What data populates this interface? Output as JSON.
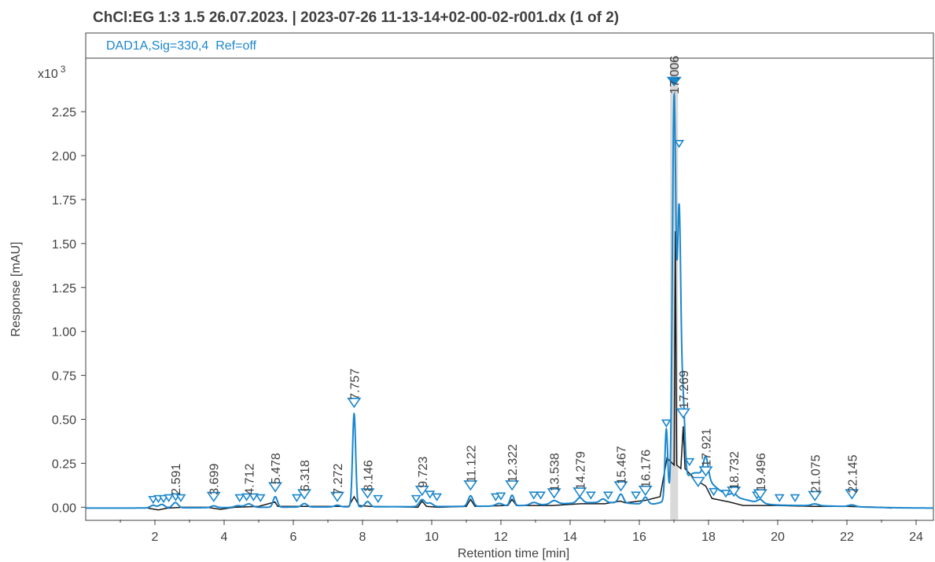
{
  "chart_data": {
    "type": "line",
    "title": "ChCl:EG 1:3 1.5 26.07.2023. | 2023-07-26 11-13-14+02-00-02-r001.dx (1 of 2)",
    "signal_label": "DAD1A,Sig=330,4  Ref=off",
    "xlabel": "Retention time [min]",
    "ylabel": "Response [mAU]",
    "y_multiplier": "x10",
    "y_multiplier_exp": "3",
    "xlim": [
      0,
      24.5
    ],
    "ylim": [
      -0.07,
      2.55
    ],
    "x_ticks": [
      {
        "v": 2,
        "label": "2"
      },
      {
        "v": 4,
        "label": "4"
      },
      {
        "v": 6,
        "label": "6"
      },
      {
        "v": 8,
        "label": "8"
      },
      {
        "v": 10,
        "label": "10"
      },
      {
        "v": 12,
        "label": "12"
      },
      {
        "v": 14,
        "label": "14"
      },
      {
        "v": 16,
        "label": "16"
      },
      {
        "v": 18,
        "label": "18"
      },
      {
        "v": 20,
        "label": "20"
      },
      {
        "v": 22,
        "label": "22"
      },
      {
        "v": 24,
        "label": "24"
      }
    ],
    "y_ticks": [
      {
        "v": 0,
        "label": "0.00"
      },
      {
        "v": 0.25,
        "label": "0.25"
      },
      {
        "v": 0.5,
        "label": "0.50"
      },
      {
        "v": 0.75,
        "label": "0.75"
      },
      {
        "v": 1.0,
        "label": "1.00"
      },
      {
        "v": 1.25,
        "label": "1.25"
      },
      {
        "v": 1.5,
        "label": "1.50"
      },
      {
        "v": 1.75,
        "label": "1.75"
      },
      {
        "v": 2.0,
        "label": "2.00"
      },
      {
        "v": 2.25,
        "label": "2.25"
      }
    ],
    "highlight_x": 17.006,
    "colors": {
      "signal": "#1a86cc",
      "baseline": "#1a1a1a",
      "highlight": "#d9d9d9",
      "text": "#404040"
    },
    "signal": {
      "name": "DAD1A,Sig=330,4  Ref=off",
      "baseline_level": -0.005,
      "peaks": [
        {
          "x": 1.95,
          "h": 0.015,
          "w": 0.08
        },
        {
          "x": 2.2,
          "h": 0.02,
          "w": 0.08
        },
        {
          "x": 2.591,
          "h": 0.03,
          "w": 0.08
        },
        {
          "x": 3.699,
          "h": 0.01,
          "w": 0.08
        },
        {
          "x": 4.4,
          "h": 0.01,
          "w": 0.1
        },
        {
          "x": 4.712,
          "h": 0.02,
          "w": 0.1
        },
        {
          "x": 5.478,
          "h": 0.06,
          "w": 0.06
        },
        {
          "x": 6.318,
          "h": 0.02,
          "w": 0.08
        },
        {
          "x": 7.272,
          "h": 0.01,
          "w": 0.08
        },
        {
          "x": 7.757,
          "h": 0.53,
          "w": 0.045
        },
        {
          "x": 8.146,
          "h": 0.03,
          "w": 0.07
        },
        {
          "x": 9.723,
          "h": 0.04,
          "w": 0.08
        },
        {
          "x": 9.95,
          "h": 0.02,
          "w": 0.08
        },
        {
          "x": 11.122,
          "h": 0.06,
          "w": 0.07
        },
        {
          "x": 11.95,
          "h": 0.015,
          "w": 0.1
        },
        {
          "x": 12.322,
          "h": 0.06,
          "w": 0.06
        },
        {
          "x": 12.95,
          "h": 0.015,
          "w": 0.1
        },
        {
          "x": 13.538,
          "h": 0.02,
          "w": 0.1
        },
        {
          "x": 14.279,
          "h": 0.03,
          "w": 0.08
        },
        {
          "x": 14.95,
          "h": 0.02,
          "w": 0.08
        },
        {
          "x": 15.467,
          "h": 0.05,
          "w": 0.07
        },
        {
          "x": 16.176,
          "h": 0.04,
          "w": 0.07
        },
        {
          "x": 16.78,
          "h": 0.4,
          "w": 0.04
        },
        {
          "x": 17.006,
          "h": 2.24,
          "w": 0.05
        },
        {
          "x": 17.15,
          "h": 1.55,
          "w": 0.05
        },
        {
          "x": 17.269,
          "h": 0.42,
          "w": 0.05
        },
        {
          "x": 17.921,
          "h": 0.12,
          "w": 0.07
        },
        {
          "x": 18.732,
          "h": 0.02,
          "w": 0.08
        },
        {
          "x": 19.496,
          "h": 0.02,
          "w": 0.08
        },
        {
          "x": 21.075,
          "h": 0.01,
          "w": 0.1
        },
        {
          "x": 22.145,
          "h": 0.01,
          "w": 0.1
        }
      ],
      "humps": [
        {
          "x": 6.5,
          "h": 0.005,
          "w": 2.5
        },
        {
          "x": 12.5,
          "h": 0.01,
          "w": 3.0
        },
        {
          "x": 15.0,
          "h": 0.025,
          "w": 1.3
        },
        {
          "x": 17.6,
          "h": 0.18,
          "w": 0.45
        },
        {
          "x": 18.6,
          "h": 0.05,
          "w": 0.6
        },
        {
          "x": 20.5,
          "h": 0.015,
          "w": 1.5
        }
      ]
    },
    "baseline_trace": [
      [
        1.8,
        -0.005
      ],
      [
        2.1,
        -0.015
      ],
      [
        2.35,
        -0.005
      ],
      [
        2.8,
        0.0
      ],
      [
        3.5,
        0.0
      ],
      [
        3.9,
        -0.012
      ],
      [
        4.3,
        0.0
      ],
      [
        5.0,
        0.005
      ],
      [
        5.47,
        0.03
      ],
      [
        5.55,
        0.005
      ],
      [
        6.5,
        0.005
      ],
      [
        7.6,
        0.005
      ],
      [
        7.757,
        0.06
      ],
      [
        7.9,
        0.01
      ],
      [
        8.2,
        0.005
      ],
      [
        9.6,
        0.0
      ],
      [
        9.72,
        0.035
      ],
      [
        9.85,
        0.005
      ],
      [
        10.2,
        0.0
      ],
      [
        11.0,
        0.005
      ],
      [
        11.12,
        0.045
      ],
      [
        11.25,
        0.005
      ],
      [
        12.2,
        0.01
      ],
      [
        12.32,
        0.045
      ],
      [
        12.45,
        0.01
      ],
      [
        13.5,
        0.01
      ],
      [
        14.3,
        0.02
      ],
      [
        15.0,
        0.02
      ],
      [
        15.45,
        0.035
      ],
      [
        15.6,
        0.025
      ],
      [
        16.2,
        0.04
      ],
      [
        16.6,
        0.06
      ],
      [
        16.8,
        0.28
      ],
      [
        17.006,
        0.24
      ],
      [
        17.04,
        1.57
      ],
      [
        17.08,
        0.24
      ],
      [
        17.2,
        0.22
      ],
      [
        17.269,
        0.46
      ],
      [
        17.32,
        0.22
      ],
      [
        17.6,
        0.16
      ],
      [
        17.921,
        0.12
      ],
      [
        18.1,
        0.05
      ],
      [
        18.6,
        0.03
      ],
      [
        19.0,
        0.01
      ],
      [
        20.0,
        0.01
      ],
      [
        21.0,
        0.005
      ],
      [
        22.0,
        0.005
      ],
      [
        23.0,
        0.0
      ],
      [
        23.3,
        -0.005
      ]
    ],
    "markers": [
      {
        "x": 1.95,
        "y": 0.025,
        "size": "small"
      },
      {
        "x": 2.1,
        "y": 0.03,
        "size": "small"
      },
      {
        "x": 2.25,
        "y": 0.03,
        "size": "small"
      },
      {
        "x": 2.4,
        "y": 0.035,
        "size": "small"
      },
      {
        "x": 2.6,
        "y": 0.04,
        "size": "small"
      },
      {
        "x": 2.75,
        "y": 0.035,
        "size": "small"
      },
      {
        "x": 3.699,
        "y": 0.035,
        "size": "large"
      },
      {
        "x": 4.45,
        "y": 0.035,
        "size": "small"
      },
      {
        "x": 4.65,
        "y": 0.04,
        "size": "small"
      },
      {
        "x": 4.85,
        "y": 0.04,
        "size": "small"
      },
      {
        "x": 5.05,
        "y": 0.035,
        "size": "small"
      },
      {
        "x": 5.478,
        "y": 0.09,
        "size": "large"
      },
      {
        "x": 6.1,
        "y": 0.035,
        "size": "small"
      },
      {
        "x": 6.318,
        "y": 0.05,
        "size": "large"
      },
      {
        "x": 7.272,
        "y": 0.035,
        "size": "large"
      },
      {
        "x": 7.757,
        "y": 0.57,
        "size": "large"
      },
      {
        "x": 8.146,
        "y": 0.055,
        "size": "large"
      },
      {
        "x": 8.45,
        "y": 0.03,
        "size": "small"
      },
      {
        "x": 9.55,
        "y": 0.03,
        "size": "small"
      },
      {
        "x": 9.723,
        "y": 0.07,
        "size": "large"
      },
      {
        "x": 9.95,
        "y": 0.055,
        "size": "small"
      },
      {
        "x": 10.15,
        "y": 0.04,
        "size": "small"
      },
      {
        "x": 11.122,
        "y": 0.1,
        "size": "large"
      },
      {
        "x": 11.85,
        "y": 0.04,
        "size": "small"
      },
      {
        "x": 12.0,
        "y": 0.045,
        "size": "small"
      },
      {
        "x": 12.322,
        "y": 0.1,
        "size": "large"
      },
      {
        "x": 12.95,
        "y": 0.05,
        "size": "small"
      },
      {
        "x": 13.15,
        "y": 0.05,
        "size": "small"
      },
      {
        "x": 13.538,
        "y": 0.055,
        "size": "large"
      },
      {
        "x": 14.279,
        "y": 0.06,
        "size": "large"
      },
      {
        "x": 14.6,
        "y": 0.05,
        "size": "small"
      },
      {
        "x": 15.1,
        "y": 0.05,
        "size": "small"
      },
      {
        "x": 15.467,
        "y": 0.095,
        "size": "large"
      },
      {
        "x": 15.9,
        "y": 0.05,
        "size": "small"
      },
      {
        "x": 16.176,
        "y": 0.07,
        "size": "large"
      },
      {
        "x": 16.78,
        "y": 0.46,
        "size": "small"
      },
      {
        "x": 17.006,
        "y": 2.4,
        "size": "filled"
      },
      {
        "x": 17.15,
        "y": 2.05,
        "size": "small"
      },
      {
        "x": 17.269,
        "y": 0.51,
        "size": "large"
      },
      {
        "x": 17.45,
        "y": 0.24,
        "size": "small"
      },
      {
        "x": 17.7,
        "y": 0.12,
        "size": "large"
      },
      {
        "x": 17.921,
        "y": 0.18,
        "size": "large"
      },
      {
        "x": 18.15,
        "y": 0.07,
        "size": "small"
      },
      {
        "x": 18.5,
        "y": 0.06,
        "size": "small"
      },
      {
        "x": 18.732,
        "y": 0.065,
        "size": "large"
      },
      {
        "x": 19.4,
        "y": 0.05,
        "size": "small"
      },
      {
        "x": 19.496,
        "y": 0.05,
        "size": "large"
      },
      {
        "x": 20.05,
        "y": 0.035,
        "size": "small"
      },
      {
        "x": 20.5,
        "y": 0.035,
        "size": "small"
      },
      {
        "x": 21.075,
        "y": 0.04,
        "size": "large"
      },
      {
        "x": 22.145,
        "y": 0.05,
        "size": "large"
      }
    ],
    "peak_labels": [
      {
        "x": 2.591,
        "y": 0.07,
        "text": "2.591"
      },
      {
        "x": 3.699,
        "y": 0.07,
        "text": "3.699"
      },
      {
        "x": 4.712,
        "y": 0.07,
        "text": "4.712"
      },
      {
        "x": 5.478,
        "y": 0.13,
        "text": "5.478"
      },
      {
        "x": 6.318,
        "y": 0.09,
        "text": "6.318"
      },
      {
        "x": 7.272,
        "y": 0.07,
        "text": "7.272"
      },
      {
        "x": 7.757,
        "y": 0.61,
        "text": "7.757"
      },
      {
        "x": 8.146,
        "y": 0.09,
        "text": "8.146"
      },
      {
        "x": 9.723,
        "y": 0.11,
        "text": "9.723"
      },
      {
        "x": 11.122,
        "y": 0.14,
        "text": "11.122"
      },
      {
        "x": 12.322,
        "y": 0.14,
        "text": "12.322"
      },
      {
        "x": 13.538,
        "y": 0.09,
        "text": "13.538"
      },
      {
        "x": 14.279,
        "y": 0.1,
        "text": "14.279"
      },
      {
        "x": 15.467,
        "y": 0.13,
        "text": "15.467"
      },
      {
        "x": 16.176,
        "y": 0.11,
        "text": "16.176"
      },
      {
        "x": 17.006,
        "y": 2.35,
        "text": "17.006"
      },
      {
        "x": 17.269,
        "y": 0.56,
        "text": "17.269"
      },
      {
        "x": 17.921,
        "y": 0.23,
        "text": "17.921"
      },
      {
        "x": 18.732,
        "y": 0.1,
        "text": "18.732"
      },
      {
        "x": 19.496,
        "y": 0.09,
        "text": "19.496"
      },
      {
        "x": 21.075,
        "y": 0.08,
        "text": "21.075"
      },
      {
        "x": 22.145,
        "y": 0.08,
        "text": "22.145"
      }
    ]
  }
}
